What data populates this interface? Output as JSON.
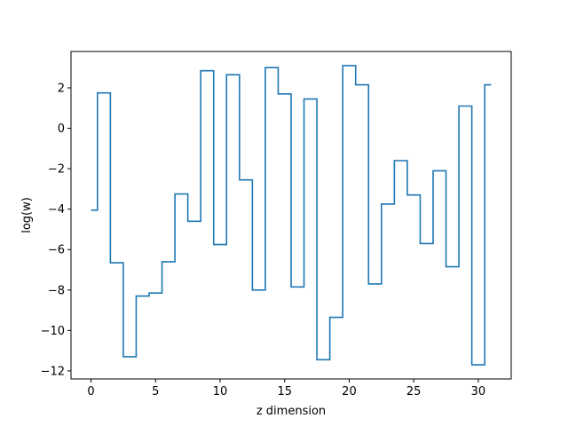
{
  "chart_data": {
    "type": "line",
    "drawstyle": "steps-mid",
    "title": "",
    "xlabel": "z dimension",
    "ylabel": "log(w)",
    "xlim": [
      -1.55,
      32.55
    ],
    "ylim": [
      -12.4,
      3.8
    ],
    "xticks": [
      0,
      5,
      10,
      15,
      20,
      25,
      30
    ],
    "yticks": [
      -12,
      -10,
      -8,
      -6,
      -4,
      -2,
      0,
      2
    ],
    "grid": false,
    "legend": "none",
    "series": [
      {
        "color": "#1f77b4",
        "x": [
          0,
          1,
          2,
          3,
          4,
          5,
          6,
          7,
          8,
          9,
          10,
          11,
          12,
          13,
          14,
          15,
          16,
          17,
          18,
          19,
          20,
          21,
          22,
          23,
          24,
          25,
          26,
          27,
          28,
          29,
          30,
          31
        ],
        "values": [
          -4.05,
          1.75,
          -6.65,
          -11.3,
          -8.3,
          -8.15,
          -6.6,
          -3.25,
          -4.6,
          2.85,
          -5.75,
          2.65,
          -2.55,
          -8.0,
          3.0,
          1.7,
          -7.85,
          1.45,
          -11.45,
          -9.35,
          3.1,
          2.15,
          -7.7,
          -3.75,
          -1.6,
          -3.3,
          -5.7,
          -2.1,
          -6.85,
          1.1,
          -11.7,
          2.15
        ]
      }
    ]
  }
}
